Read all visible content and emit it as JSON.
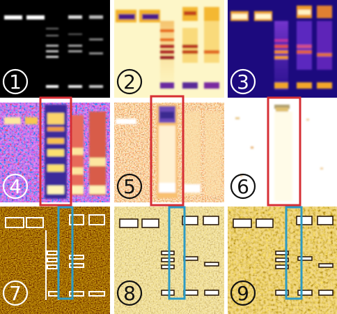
{
  "figure": {
    "panels": [
      {
        "label": "1",
        "style": "ethidium-gray"
      },
      {
        "label": "2",
        "style": "pseudocolor-yellow"
      },
      {
        "label": "3",
        "style": "pseudocolor-purple"
      },
      {
        "label": "4",
        "style": "enhanced-rainbow"
      },
      {
        "label": "5",
        "style": "enhanced-red"
      },
      {
        "label": "6",
        "style": "enhanced-white"
      },
      {
        "label": "7",
        "style": "edge-dark"
      },
      {
        "label": "8",
        "style": "edge-light"
      },
      {
        "label": "9",
        "style": "edge-light-grain"
      }
    ],
    "highlight_colors": {
      "red_box": "#d62f35",
      "blue_box": "#2d9bc4"
    }
  }
}
